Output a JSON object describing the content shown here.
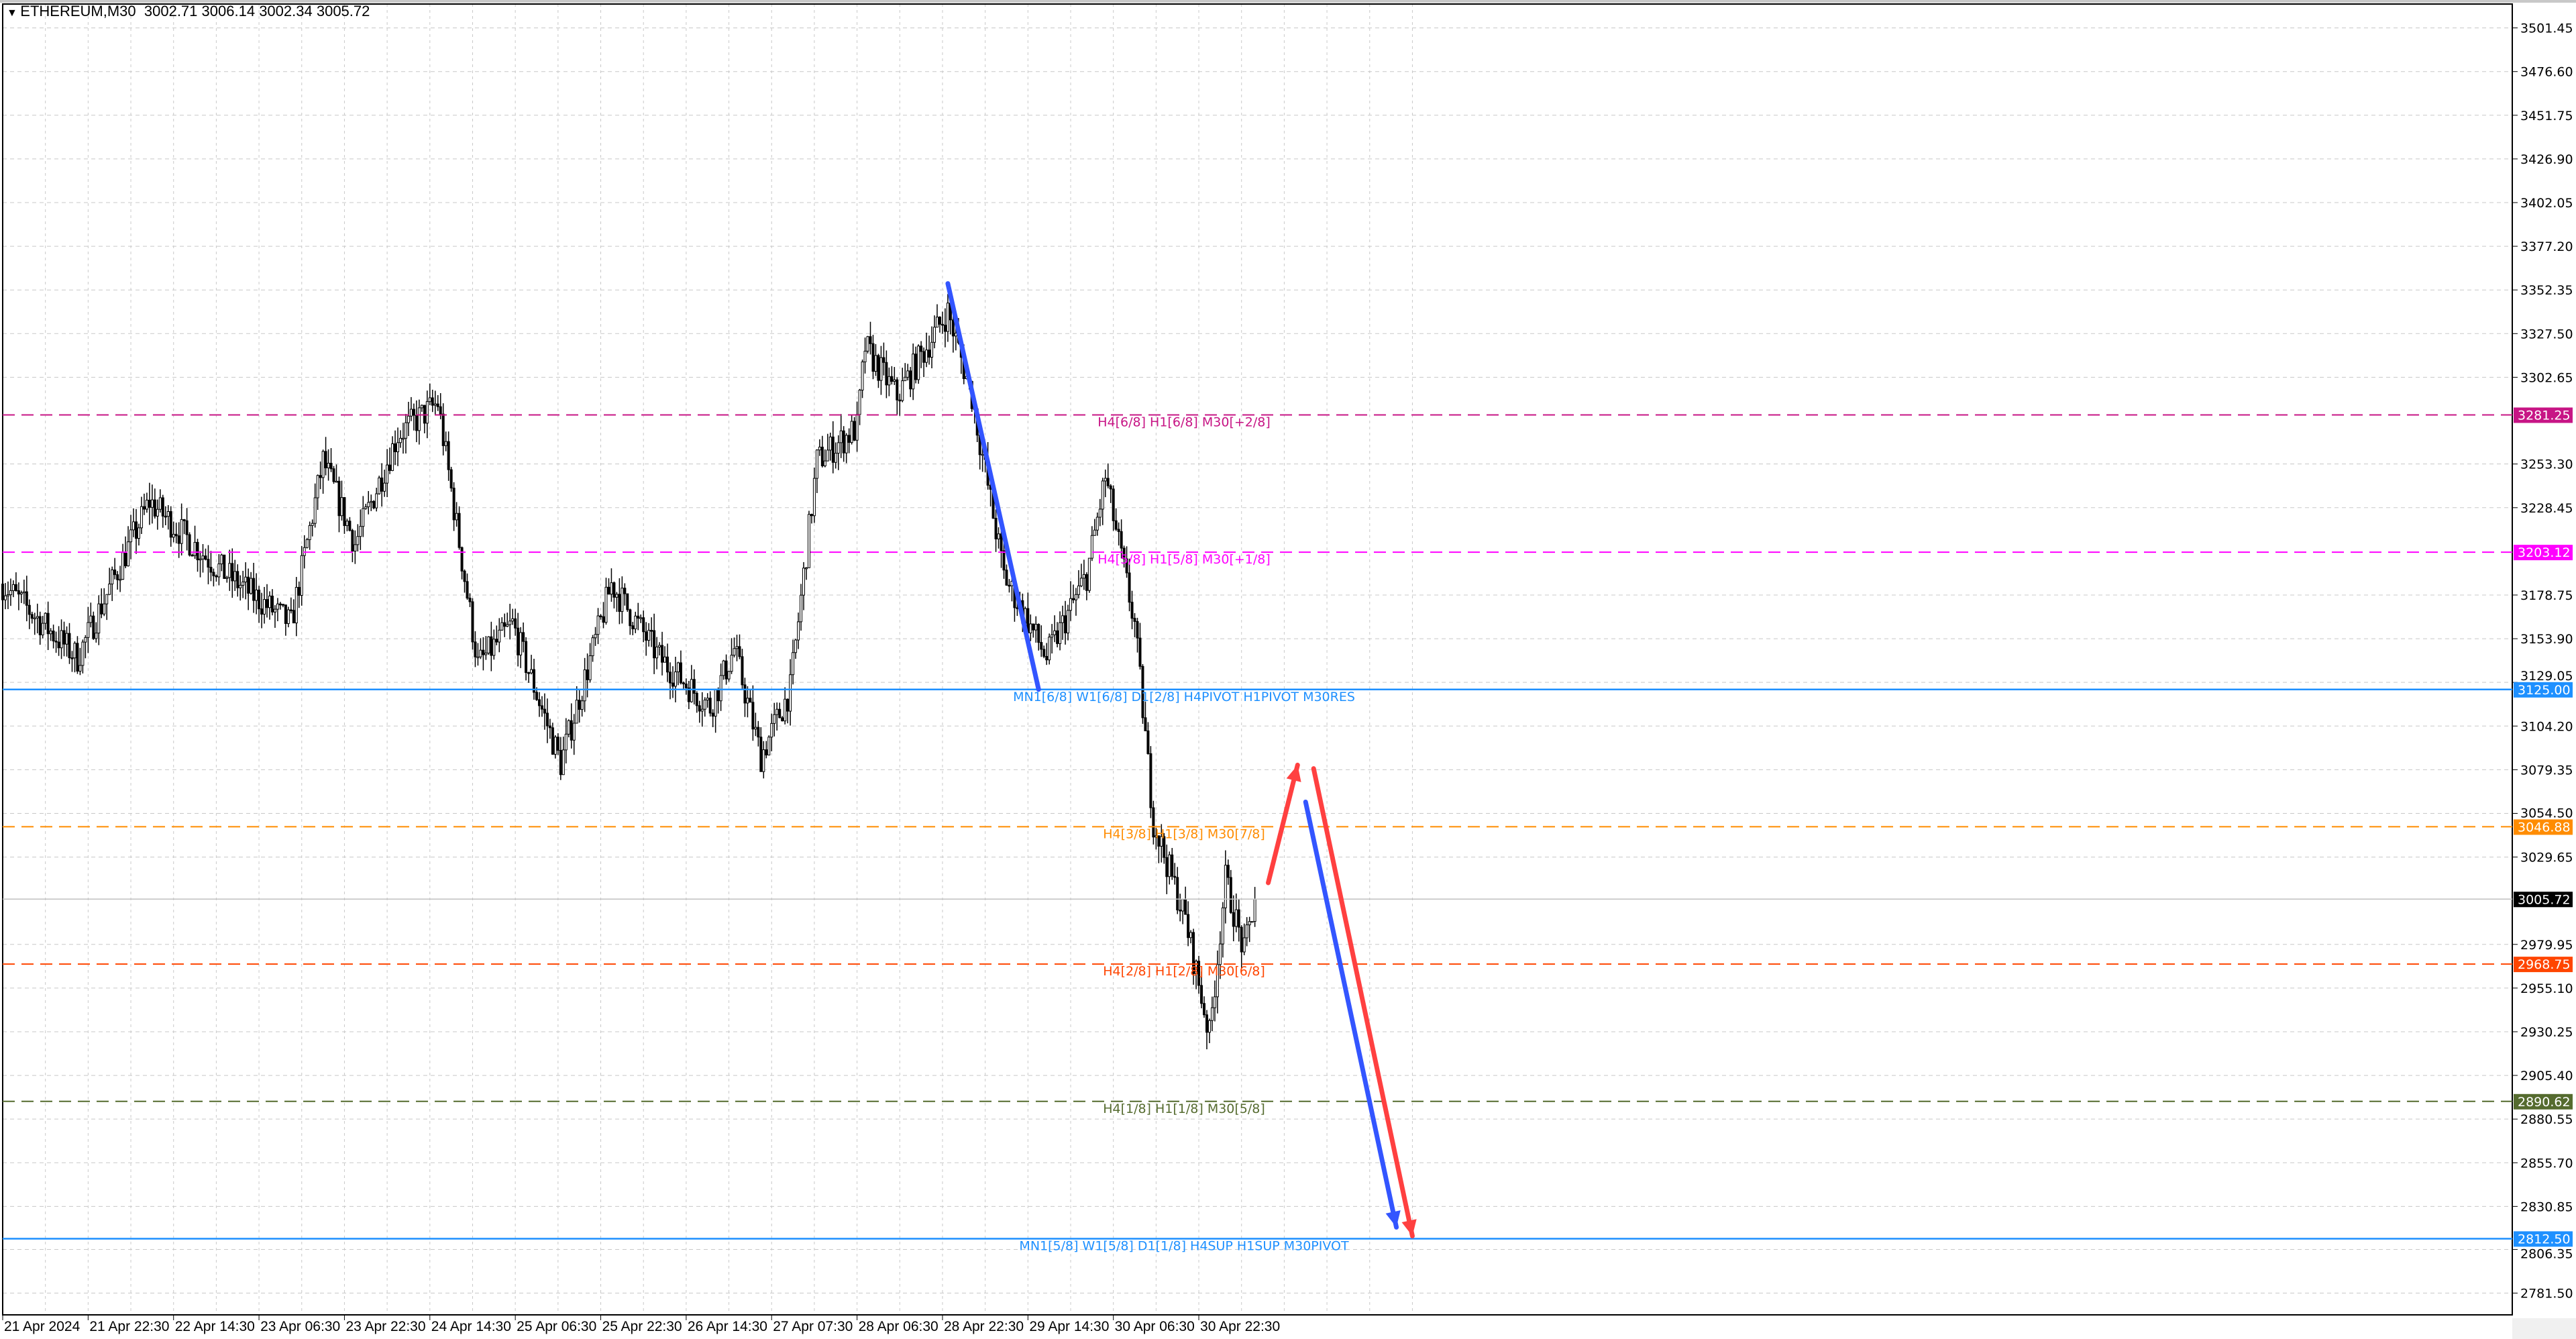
{
  "header": {
    "symbol": "ETHEREUM,M30",
    "open": "3002.71",
    "high": "3006.14",
    "low": "3002.34",
    "close": "3005.72",
    "menu_icon": "triangle-down-icon"
  },
  "chart_data": {
    "type": "candlestick",
    "timeframe": "M30",
    "ylim": [
      2781.5,
      3501.45
    ],
    "grid": true,
    "y_ticks": [
      "3501.45",
      "3476.60",
      "3451.75",
      "3426.90",
      "3402.05",
      "3377.20",
      "3352.35",
      "3327.50",
      "3302.65",
      "3253.30",
      "3228.45",
      "3178.75",
      "3153.90",
      "3129.05",
      "3104.20",
      "3079.35",
      "3054.50",
      "3029.65",
      "2979.95",
      "2955.10",
      "2930.25",
      "2905.40",
      "2880.55",
      "2855.70",
      "2830.85",
      "2806.35",
      "2781.50"
    ],
    "x_ticks": [
      "21 Apr 2024",
      "21 Apr 22:30",
      "22 Apr 14:30",
      "23 Apr 06:30",
      "23 Apr 22:30",
      "24 Apr 14:30",
      "25 Apr 06:30",
      "25 Apr 22:30",
      "26 Apr 14:30",
      "27 Apr 07:30",
      "28 Apr 06:30",
      "28 Apr 22:30",
      "29 Apr 14:30",
      "30 Apr 06:30",
      "30 Apr 22:30"
    ],
    "price_path": [
      [
        "21 Apr 06:30",
        3185
      ],
      [
        "21 Apr 20:30",
        3143
      ],
      [
        "22 Apr 10:00",
        3232
      ],
      [
        "22 Apr 22:30",
        3195
      ],
      [
        "23 Apr 12:30",
        3162
      ],
      [
        "23 Apr 18:30",
        3255
      ],
      [
        "24 Apr 00:30",
        3208
      ],
      [
        "24 Apr 08:30",
        3270
      ],
      [
        "24 Apr 16:00",
        3288
      ],
      [
        "24 Apr 23:30",
        3139
      ],
      [
        "25 Apr 06:00",
        3162
      ],
      [
        "25 Apr 15:00",
        3083
      ],
      [
        "26 Apr 00:30",
        3185
      ],
      [
        "26 Apr 09:30",
        3143
      ],
      [
        "26 Apr 19:00",
        3115
      ],
      [
        "26 Apr 23:30",
        3148
      ],
      [
        "27 Apr 04:30",
        3087
      ],
      [
        "27 Apr 10:00",
        3125
      ],
      [
        "27 Apr 15:00",
        3255
      ],
      [
        "27 Apr 22:30",
        3274
      ],
      [
        "28 Apr 00:00",
        3320
      ],
      [
        "28 Apr 06:00",
        3292
      ],
      [
        "28 Apr 15:30",
        3340
      ],
      [
        "28 Apr 20:00",
        3292
      ],
      [
        "29 Apr 02:00",
        3190
      ],
      [
        "29 Apr 10:00",
        3143
      ],
      [
        "29 Apr 17:30",
        3190
      ],
      [
        "29 Apr 21:00",
        3246
      ],
      [
        "30 Apr 02:30",
        3162
      ],
      [
        "30 Apr 06:00",
        3050
      ],
      [
        "30 Apr 12:00",
        2994
      ],
      [
        "30 Apr 16:30",
        2928
      ],
      [
        "30 Apr 19:30",
        3017
      ],
      [
        "30 Apr 23:00",
        2975
      ],
      [
        "01 May 01:00",
        3005.72
      ]
    ],
    "current_price": {
      "value": "3005.72",
      "color": "#000000"
    },
    "levels": [
      {
        "price": 3281.25,
        "tag": "3281.25",
        "label": "H4[6/8] H1[6/8] M30[+2/8]",
        "color": "#c71585",
        "style": "dashed"
      },
      {
        "price": 3203.12,
        "tag": "3203.12",
        "label": "H4[5/8] H1[5/8] M30[+1/8]",
        "color": "#ff00ff",
        "style": "dashed"
      },
      {
        "price": 3125.0,
        "tag": "3125.00",
        "label": "MN1[6/8] W1[6/8] D1[2/8] H4PIVOT H1PIVOT M30RES",
        "color": "#1e90ff",
        "style": "solid"
      },
      {
        "price": 3046.88,
        "tag": "3046.88",
        "label": "H4[3/8] H1[3/8] M30[7/8]",
        "color": "#ff8c00",
        "style": "dashed"
      },
      {
        "price": 2968.75,
        "tag": "2968.75",
        "label": "H4[2/8] H1[2/8] M30[6/8]",
        "color": "#ff4500",
        "style": "dashed"
      },
      {
        "price": 2890.62,
        "tag": "2890.62",
        "label": "H4[1/8] H1[1/8] M30[5/8]",
        "color": "#556b2f",
        "style": "dashed"
      },
      {
        "price": 2812.5,
        "tag": "2812.50",
        "label": "MN1[5/8] W1[5/8] D1[1/8] H4SUP H1SUP M30PIVOT",
        "color": "#1e90ff",
        "style": "solid"
      }
    ],
    "drawings": [
      {
        "kind": "trendline",
        "color": "#3355ff",
        "from": [
          "28 Apr 15:30",
          3356
        ],
        "to": [
          "29 Apr 08:30",
          3125
        ]
      },
      {
        "kind": "arrow",
        "color": "#ff4040",
        "from": [
          "01 May 03:30",
          3015
        ],
        "to": [
          "01 May 09:00",
          3082
        ]
      },
      {
        "kind": "arrow",
        "color": "#3355ff",
        "from": [
          "01 May 10:30",
          3061
        ],
        "to": [
          "02 May 03:30",
          2819
        ]
      },
      {
        "kind": "arrow",
        "color": "#ff4040",
        "from": [
          "01 May 12:00",
          3080
        ],
        "to": [
          "02 May 06:30",
          2814
        ]
      }
    ]
  }
}
